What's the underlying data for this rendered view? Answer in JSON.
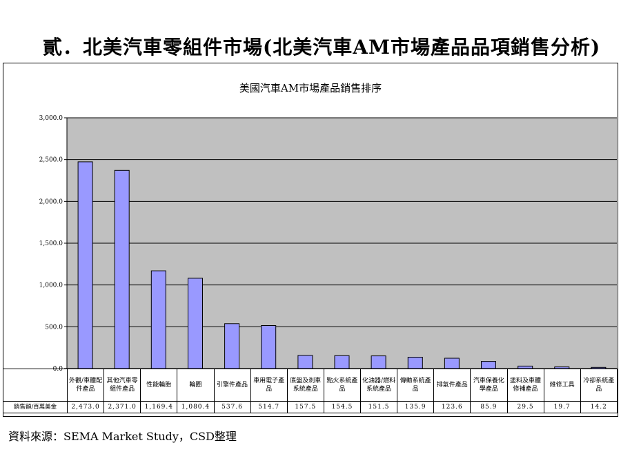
{
  "slide": {
    "title": "貳．北美汽車零組件市場(北美汽車AM市場產品品項銷售分析)"
  },
  "chart_data": {
    "type": "bar",
    "title": "美國汽車AM市場產品銷售排序",
    "categories": [
      "外觀/車體配件產品",
      "其他汽車零組件產品",
      "性能輪胎",
      "輪圈",
      "引擎件產品",
      "車用電子產品",
      "底盤及剎車系統產品",
      "點火系統產品",
      "化油器/燃料系統產品",
      "傳動系統產品",
      "排氣件產品",
      "汽車保養化學產品",
      "塗料及車體修補產品",
      "維修工具",
      "冷卻系統產品"
    ],
    "series": [
      {
        "name": "銷售額/百萬美金",
        "values": [
          2473.0,
          2371.0,
          1169.4,
          1080.4,
          537.6,
          514.7,
          157.5,
          154.5,
          151.5,
          135.9,
          123.6,
          85.9,
          29.5,
          19.7,
          14.2
        ]
      }
    ],
    "value_labels": [
      "2,473.0",
      "2,371.0",
      "1,169.4",
      "1,080.4",
      "537.6",
      "514.7",
      "157.5",
      "154.5",
      "151.5",
      "135.9",
      "123.6",
      "85.9",
      "29.5",
      "19.7",
      "14.2"
    ],
    "ylim": [
      0,
      3000
    ],
    "yticks": [
      0,
      500,
      1000,
      1500,
      2000,
      2500,
      3000
    ],
    "ytick_labels": [
      "0.0",
      "500.0",
      "1,000.0",
      "1,500.0",
      "2,000.0",
      "2,500.0",
      "3,000.0"
    ],
    "grid": true,
    "legend": "data table row",
    "bar_color": "#9999ff",
    "plot_bg": "#c0c0c0"
  },
  "source": {
    "text": "資料來源：SEMA Market Study，CSD整理"
  }
}
